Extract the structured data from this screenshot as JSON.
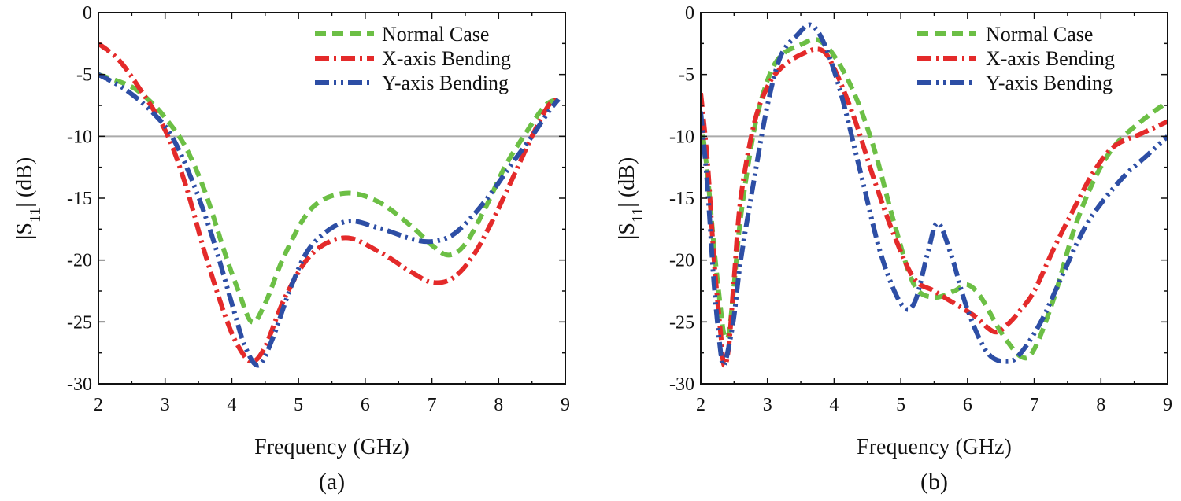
{
  "chart_data": [
    {
      "type": "line",
      "panel_label": "(a)",
      "xlabel": "Frequency (GHz)",
      "ylabel": "|S11| (dB)",
      "xlim": [
        2,
        9
      ],
      "ylim": [
        -30,
        0
      ],
      "xticks": [
        2,
        3,
        4,
        5,
        6,
        7,
        8,
        9
      ],
      "yticks": [
        0,
        -5,
        -10,
        -15,
        -20,
        -25,
        -30
      ],
      "reference_line": -10,
      "legend_position": "top-right",
      "grid": false,
      "series": [
        {
          "name": "Normal Case",
          "color": "#6cbf45",
          "dash": "dashed",
          "x": [
            2.0,
            2.5,
            2.8,
            3.0,
            3.3,
            3.6,
            3.9,
            4.1,
            4.3,
            4.5,
            4.8,
            5.2,
            5.7,
            6.2,
            6.7,
            7.0,
            7.25,
            7.5,
            7.8,
            8.1,
            8.4,
            8.7,
            8.9
          ],
          "y": [
            -5.0,
            -6.0,
            -7.3,
            -8.5,
            -10.8,
            -14.5,
            -19.5,
            -22.5,
            -25.0,
            -23.5,
            -19.5,
            -15.8,
            -14.6,
            -15.3,
            -17.3,
            -18.8,
            -19.6,
            -18.7,
            -15.8,
            -12.4,
            -9.8,
            -7.5,
            -7.0
          ]
        },
        {
          "name": "X-axis Bending",
          "color": "#e42a2a",
          "dash": "dash-dot",
          "x": [
            2.0,
            2.3,
            2.6,
            3.0,
            3.3,
            3.6,
            3.9,
            4.1,
            4.3,
            4.5,
            4.8,
            5.2,
            5.7,
            6.2,
            6.7,
            7.0,
            7.3,
            7.6,
            7.9,
            8.2,
            8.5,
            8.75,
            8.9
          ],
          "y": [
            -2.5,
            -3.8,
            -6.0,
            -9.5,
            -13.8,
            -19.5,
            -24.5,
            -27.0,
            -28.2,
            -27.0,
            -23.0,
            -19.5,
            -18.2,
            -19.3,
            -21.0,
            -21.8,
            -21.5,
            -19.8,
            -16.9,
            -13.5,
            -10.0,
            -7.5,
            -7.0
          ]
        },
        {
          "name": "Y-axis Bending",
          "color": "#2d4ea5",
          "dash": "dash-dot-dot",
          "x": [
            2.0,
            2.4,
            2.8,
            3.1,
            3.4,
            3.7,
            4.0,
            4.2,
            4.4,
            4.6,
            4.9,
            5.2,
            5.7,
            6.2,
            6.7,
            7.0,
            7.3,
            7.6,
            7.9,
            8.2,
            8.5,
            8.75,
            8.9
          ],
          "y": [
            -5.0,
            -6.2,
            -8.0,
            -10.0,
            -13.5,
            -18.0,
            -23.5,
            -27.0,
            -28.5,
            -26.5,
            -22.0,
            -18.8,
            -16.9,
            -17.4,
            -18.3,
            -18.5,
            -18.0,
            -16.5,
            -14.5,
            -12.2,
            -10.0,
            -8.0,
            -7.0
          ]
        }
      ]
    },
    {
      "type": "line",
      "panel_label": "(b)",
      "xlabel": "Frequency (GHz)",
      "ylabel": "|S11| (dB)",
      "xlim": [
        2,
        9
      ],
      "ylim": [
        -30,
        0
      ],
      "xticks": [
        2,
        3,
        4,
        5,
        6,
        7,
        8,
        9
      ],
      "yticks": [
        0,
        -5,
        -10,
        -15,
        -20,
        -25,
        -30
      ],
      "reference_line": -10,
      "legend_position": "top-right",
      "grid": false,
      "series": [
        {
          "name": "Normal Case",
          "color": "#6cbf45",
          "dash": "dashed",
          "x": [
            2.0,
            2.1,
            2.2,
            2.3,
            2.35,
            2.42,
            2.5,
            2.6,
            2.8,
            3.0,
            3.2,
            3.5,
            3.75,
            4.0,
            4.3,
            4.6,
            4.9,
            5.2,
            5.5,
            5.8,
            6.0,
            6.2,
            6.5,
            6.8,
            7.0,
            7.3,
            7.6,
            7.9,
            8.2,
            8.6,
            9.0
          ],
          "y": [
            -8.5,
            -13.0,
            -19.0,
            -24.0,
            -26.0,
            -26.0,
            -22.0,
            -16.5,
            -9.5,
            -5.5,
            -3.5,
            -2.6,
            -2.2,
            -3.5,
            -6.5,
            -11.0,
            -17.0,
            -22.0,
            -23.0,
            -22.5,
            -22.0,
            -23.0,
            -25.8,
            -27.8,
            -27.2,
            -23.0,
            -17.5,
            -13.5,
            -10.8,
            -8.8,
            -7.2
          ]
        },
        {
          "name": "X-axis Bending",
          "color": "#e42a2a",
          "dash": "dash-dot",
          "x": [
            2.0,
            2.1,
            2.2,
            2.3,
            2.35,
            2.42,
            2.5,
            2.6,
            2.8,
            3.0,
            3.2,
            3.5,
            3.8,
            4.0,
            4.3,
            4.6,
            4.9,
            5.2,
            5.5,
            5.8,
            6.1,
            6.4,
            6.6,
            6.8,
            7.0,
            7.3,
            7.6,
            7.9,
            8.2,
            8.6,
            9.0
          ],
          "y": [
            -6.5,
            -12.0,
            -20.0,
            -26.0,
            -28.5,
            -27.0,
            -21.5,
            -15.0,
            -9.0,
            -6.0,
            -4.5,
            -3.4,
            -3.0,
            -4.5,
            -8.5,
            -13.5,
            -18.0,
            -21.5,
            -22.5,
            -23.5,
            -24.5,
            -25.8,
            -25.2,
            -24.0,
            -22.5,
            -19.0,
            -15.8,
            -12.8,
            -10.8,
            -9.8,
            -8.8
          ]
        },
        {
          "name": "Y-axis Bending",
          "color": "#2d4ea5",
          "dash": "dash-dot-dot",
          "x": [
            2.0,
            2.1,
            2.2,
            2.3,
            2.35,
            2.42,
            2.5,
            2.6,
            2.8,
            3.0,
            3.2,
            3.45,
            3.65,
            3.85,
            4.1,
            4.4,
            4.7,
            5.0,
            5.2,
            5.4,
            5.55,
            5.75,
            6.0,
            6.3,
            6.6,
            6.8,
            7.1,
            7.4,
            7.8,
            8.3,
            8.7,
            9.0
          ],
          "y": [
            -8.0,
            -14.0,
            -22.0,
            -27.5,
            -28.5,
            -27.0,
            -24.5,
            -20.0,
            -13.5,
            -7.5,
            -3.5,
            -1.8,
            -1.0,
            -2.5,
            -6.5,
            -13.0,
            -19.5,
            -23.5,
            -23.5,
            -19.5,
            -17.0,
            -19.5,
            -24.0,
            -27.5,
            -28.2,
            -27.5,
            -25.0,
            -21.5,
            -17.0,
            -13.5,
            -11.5,
            -10.0
          ]
        }
      ]
    }
  ]
}
